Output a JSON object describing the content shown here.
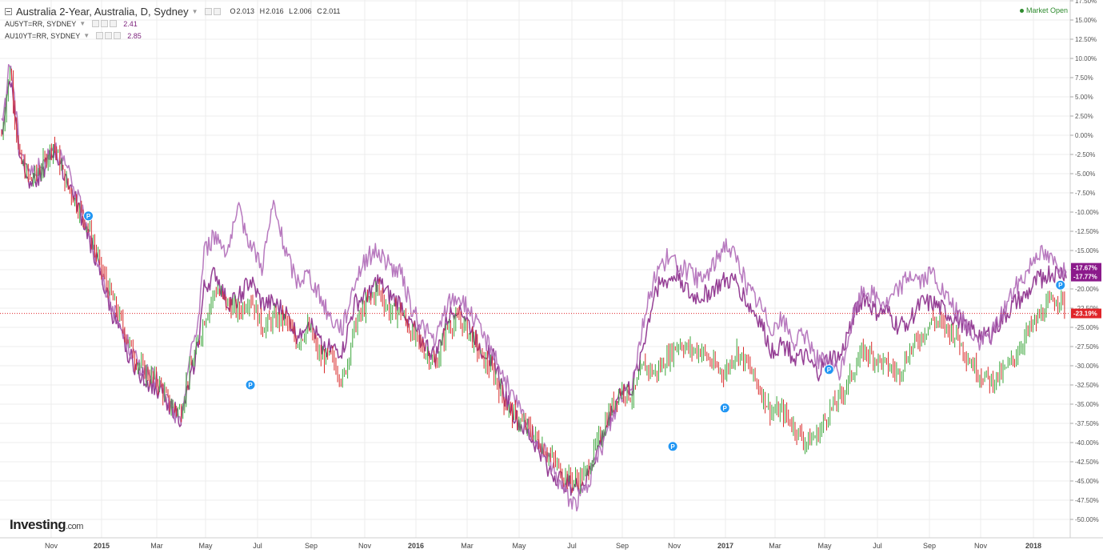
{
  "legend": {
    "main_symbol": "Australia 2-Year, Australia, D, Sydney",
    "ohlc": {
      "o_label": "O",
      "o": "2.013",
      "h_label": "H",
      "h": "2.016",
      "l_label": "L",
      "l": "2.006",
      "c_label": "C",
      "c": "2.011"
    },
    "series": [
      {
        "symbol": "AU5YT=RR, SYDNEY",
        "value": "2.41"
      },
      {
        "symbol": "AU10YT=RR, SYDNEY",
        "value": "2.85"
      }
    ]
  },
  "status": {
    "market": "Market Open"
  },
  "logo": {
    "name": "Investing",
    "suffix": ".com"
  },
  "price_tags": [
    "-17.67%",
    "-17.77%",
    "-23.19%"
  ],
  "event_marker_label": "P",
  "colors": {
    "up": "#3aa63a",
    "down": "#d92a2a",
    "overlay_5y": "#8a2a8a",
    "overlay_10y": "#b06bb8",
    "tag_purple": "#8b1a8b",
    "tag_red": "#e0252a",
    "marker_blue": "#2196f3"
  },
  "chart_data": {
    "type": "line",
    "title": "",
    "x_ticks": [
      "Nov",
      "2015",
      "Mar",
      "May",
      "Jul",
      "Sep",
      "Nov",
      "2016",
      "Mar",
      "May",
      "Jul",
      "Sep",
      "Nov",
      "2017",
      "Mar",
      "May",
      "Jul",
      "Sep",
      "Nov",
      "2018"
    ],
    "y_ticks": [
      "17.50%",
      "15.00%",
      "12.50%",
      "10.00%",
      "7.50%",
      "5.00%",
      "2.50%",
      "0.00%",
      "-2.50%",
      "-5.00%",
      "-7.50%",
      "-10.00%",
      "-12.50%",
      "-15.00%",
      "-17.50%",
      "-20.00%",
      "-22.50%",
      "-25.00%",
      "-27.50%",
      "-30.00%",
      "-32.50%",
      "-35.00%",
      "-37.50%",
      "-40.00%",
      "-42.50%",
      "-45.00%",
      "-47.50%",
      "-50.00%"
    ],
    "ylim": [
      -50,
      17.5
    ],
    "grid": true,
    "series": [
      {
        "name": "Australia 2-Year, Australia, D, Sydney",
        "style": "ohlc-bars",
        "points": [
          [
            0,
            0
          ],
          [
            1.5,
            9
          ],
          [
            3,
            -3
          ],
          [
            5,
            -6
          ],
          [
            7,
            -4
          ],
          [
            9,
            -1
          ],
          [
            11,
            -6
          ],
          [
            13,
            -9
          ],
          [
            15,
            -12
          ],
          [
            17,
            -17
          ],
          [
            19,
            -21
          ],
          [
            21,
            -25
          ],
          [
            23,
            -29
          ],
          [
            25,
            -31
          ],
          [
            27,
            -32
          ],
          [
            29,
            -35
          ],
          [
            31,
            -36
          ],
          [
            32,
            -32
          ],
          [
            34,
            -27
          ],
          [
            35,
            -24
          ],
          [
            37,
            -20
          ],
          [
            39,
            -22
          ],
          [
            41,
            -23
          ],
          [
            43,
            -21
          ],
          [
            45,
            -25
          ],
          [
            47,
            -24
          ],
          [
            49,
            -24
          ],
          [
            51,
            -27
          ],
          [
            53,
            -25
          ],
          [
            55,
            -29
          ],
          [
            57,
            -29
          ],
          [
            59,
            -32
          ],
          [
            61,
            -25
          ],
          [
            63,
            -22
          ],
          [
            65,
            -20
          ],
          [
            67,
            -23
          ],
          [
            69,
            -23
          ],
          [
            71,
            -26
          ],
          [
            73,
            -28
          ],
          [
            75,
            -30
          ],
          [
            77,
            -25
          ],
          [
            79,
            -24
          ],
          [
            81,
            -26
          ],
          [
            83,
            -29
          ],
          [
            85,
            -31
          ],
          [
            87,
            -35
          ],
          [
            89,
            -37
          ],
          [
            91,
            -38
          ],
          [
            93,
            -40
          ],
          [
            95,
            -42
          ],
          [
            97,
            -44
          ],
          [
            99,
            -45
          ],
          [
            101,
            -44
          ],
          [
            103,
            -40
          ],
          [
            105,
            -36
          ],
          [
            107,
            -33
          ],
          [
            109,
            -34
          ],
          [
            111,
            -30
          ],
          [
            113,
            -31
          ],
          [
            115,
            -29
          ],
          [
            117,
            -27
          ],
          [
            119,
            -28
          ],
          [
            121,
            -28
          ],
          [
            123,
            -30
          ],
          [
            125,
            -31
          ],
          [
            127,
            -28
          ],
          [
            129,
            -30
          ],
          [
            131,
            -33
          ],
          [
            133,
            -36
          ],
          [
            135,
            -36
          ],
          [
            137,
            -38
          ],
          [
            139,
            -40
          ],
          [
            141,
            -39
          ],
          [
            143,
            -36
          ],
          [
            145,
            -34
          ],
          [
            147,
            -31
          ],
          [
            149,
            -28
          ],
          [
            151,
            -29
          ],
          [
            153,
            -30
          ],
          [
            155,
            -31
          ],
          [
            157,
            -28
          ],
          [
            159,
            -26
          ],
          [
            161,
            -24
          ],
          [
            163,
            -25
          ],
          [
            165,
            -26
          ],
          [
            167,
            -29
          ],
          [
            169,
            -31
          ],
          [
            171,
            -32
          ],
          [
            173,
            -31
          ],
          [
            175,
            -29
          ],
          [
            177,
            -26
          ],
          [
            179,
            -24
          ],
          [
            181,
            -22
          ],
          [
            183,
            -21
          ],
          [
            184,
            -23.19
          ]
        ]
      },
      {
        "name": "AU5YT=RR, SYDNEY",
        "style": "line",
        "points": [
          [
            0,
            0
          ],
          [
            1.5,
            8
          ],
          [
            3,
            -2
          ],
          [
            5,
            -6
          ],
          [
            7,
            -5
          ],
          [
            9,
            -2
          ],
          [
            11,
            -5
          ],
          [
            13,
            -9
          ],
          [
            15,
            -13
          ],
          [
            17,
            -18
          ],
          [
            19,
            -23
          ],
          [
            21,
            -27
          ],
          [
            23,
            -30
          ],
          [
            25,
            -32
          ],
          [
            27,
            -33
          ],
          [
            29,
            -35
          ],
          [
            31,
            -37
          ],
          [
            32,
            -34
          ],
          [
            34,
            -27
          ],
          [
            35,
            -20
          ],
          [
            37,
            -18
          ],
          [
            39,
            -22
          ],
          [
            41,
            -21
          ],
          [
            43,
            -19
          ],
          [
            45,
            -22
          ],
          [
            47,
            -22
          ],
          [
            49,
            -23
          ],
          [
            51,
            -26
          ],
          [
            53,
            -24
          ],
          [
            55,
            -27
          ],
          [
            57,
            -28
          ],
          [
            59,
            -28
          ],
          [
            61,
            -22
          ],
          [
            63,
            -21
          ],
          [
            65,
            -19
          ],
          [
            67,
            -21
          ],
          [
            69,
            -22
          ],
          [
            71,
            -25
          ],
          [
            73,
            -27
          ],
          [
            75,
            -29
          ],
          [
            77,
            -24
          ],
          [
            79,
            -22
          ],
          [
            81,
            -25
          ],
          [
            83,
            -28
          ],
          [
            85,
            -29
          ],
          [
            87,
            -34
          ],
          [
            89,
            -37
          ],
          [
            91,
            -39
          ],
          [
            93,
            -41
          ],
          [
            95,
            -44
          ],
          [
            97,
            -45
          ],
          [
            99,
            -46
          ],
          [
            101,
            -45
          ],
          [
            103,
            -41
          ],
          [
            105,
            -37
          ],
          [
            107,
            -33
          ],
          [
            109,
            -33
          ],
          [
            111,
            -27
          ],
          [
            113,
            -20
          ],
          [
            115,
            -19
          ],
          [
            117,
            -18
          ],
          [
            119,
            -21
          ],
          [
            121,
            -21
          ],
          [
            123,
            -20
          ],
          [
            125,
            -19
          ],
          [
            127,
            -19
          ],
          [
            129,
            -22
          ],
          [
            131,
            -24
          ],
          [
            133,
            -28
          ],
          [
            135,
            -27
          ],
          [
            137,
            -29
          ],
          [
            139,
            -29
          ],
          [
            141,
            -31
          ],
          [
            143,
            -29
          ],
          [
            145,
            -29
          ],
          [
            147,
            -24
          ],
          [
            149,
            -21
          ],
          [
            151,
            -23
          ],
          [
            153,
            -23
          ],
          [
            155,
            -25
          ],
          [
            157,
            -24
          ],
          [
            159,
            -22
          ],
          [
            161,
            -22
          ],
          [
            163,
            -23
          ],
          [
            165,
            -24
          ],
          [
            167,
            -25
          ],
          [
            169,
            -26
          ],
          [
            171,
            -26
          ],
          [
            173,
            -24
          ],
          [
            175,
            -22
          ],
          [
            177,
            -21
          ],
          [
            179,
            -19
          ],
          [
            181,
            -18
          ],
          [
            183,
            -18
          ],
          [
            184,
            -17.77
          ]
        ]
      },
      {
        "name": "AU10YT=RR, SYDNEY",
        "style": "line",
        "points": [
          [
            0,
            1
          ],
          [
            1.5,
            10
          ],
          [
            3,
            -1
          ],
          [
            5,
            -5
          ],
          [
            7,
            -4
          ],
          [
            9,
            -1
          ],
          [
            11,
            -4
          ],
          [
            13,
            -8
          ],
          [
            15,
            -12
          ],
          [
            17,
            -18
          ],
          [
            19,
            -22
          ],
          [
            21,
            -26
          ],
          [
            23,
            -29
          ],
          [
            25,
            -31
          ],
          [
            27,
            -32
          ],
          [
            29,
            -35
          ],
          [
            31,
            -38
          ],
          [
            32,
            -31
          ],
          [
            34,
            -24
          ],
          [
            35,
            -15
          ],
          [
            37,
            -13
          ],
          [
            39,
            -15
          ],
          [
            41,
            -10
          ],
          [
            43,
            -14
          ],
          [
            45,
            -17
          ],
          [
            47,
            -9
          ],
          [
            49,
            -15
          ],
          [
            51,
            -19
          ],
          [
            53,
            -18
          ],
          [
            55,
            -21
          ],
          [
            57,
            -24
          ],
          [
            59,
            -25
          ],
          [
            61,
            -19
          ],
          [
            63,
            -16
          ],
          [
            65,
            -15
          ],
          [
            67,
            -17
          ],
          [
            69,
            -18
          ],
          [
            71,
            -23
          ],
          [
            73,
            -25
          ],
          [
            75,
            -27
          ],
          [
            77,
            -22
          ],
          [
            79,
            -21
          ],
          [
            81,
            -23
          ],
          [
            83,
            -26
          ],
          [
            85,
            -28
          ],
          [
            87,
            -32
          ],
          [
            89,
            -35
          ],
          [
            91,
            -38
          ],
          [
            93,
            -40
          ],
          [
            95,
            -43
          ],
          [
            97,
            -46
          ],
          [
            99,
            -48
          ],
          [
            101,
            -46
          ],
          [
            103,
            -42
          ],
          [
            105,
            -38
          ],
          [
            107,
            -34
          ],
          [
            109,
            -32
          ],
          [
            111,
            -24
          ],
          [
            113,
            -18
          ],
          [
            115,
            -16
          ],
          [
            117,
            -17
          ],
          [
            119,
            -18
          ],
          [
            121,
            -19
          ],
          [
            123,
            -17
          ],
          [
            125,
            -14
          ],
          [
            127,
            -16
          ],
          [
            129,
            -20
          ],
          [
            131,
            -22
          ],
          [
            133,
            -25
          ],
          [
            135,
            -24
          ],
          [
            137,
            -27
          ],
          [
            139,
            -26
          ],
          [
            141,
            -29
          ],
          [
            143,
            -30
          ],
          [
            145,
            -31
          ],
          [
            147,
            -24
          ],
          [
            149,
            -20
          ],
          [
            151,
            -21
          ],
          [
            153,
            -22
          ],
          [
            155,
            -20
          ],
          [
            157,
            -18
          ],
          [
            159,
            -19
          ],
          [
            161,
            -18
          ],
          [
            163,
            -21
          ],
          [
            165,
            -23
          ],
          [
            167,
            -25
          ],
          [
            169,
            -27
          ],
          [
            171,
            -26
          ],
          [
            173,
            -23
          ],
          [
            175,
            -20
          ],
          [
            177,
            -18
          ],
          [
            179,
            -15
          ],
          [
            181,
            -16
          ],
          [
            183,
            -17
          ],
          [
            184,
            -17.67
          ]
        ]
      }
    ],
    "markers": [
      {
        "x": 15,
        "y": -10.5
      },
      {
        "x": 43,
        "y": -32.5
      },
      {
        "x": 116,
        "y": -40.5
      },
      {
        "x": 125,
        "y": -35.5
      },
      {
        "x": 143,
        "y": -30.5
      },
      {
        "x": 183,
        "y": -19.5
      }
    ],
    "tick_positions_x": [
      7,
      17,
      27,
      37,
      47,
      57,
      67,
      77,
      87,
      97,
      107,
      117,
      127,
      137,
      147,
      157,
      167,
      177,
      187,
      197
    ],
    "current_price_line": -23.19
  }
}
